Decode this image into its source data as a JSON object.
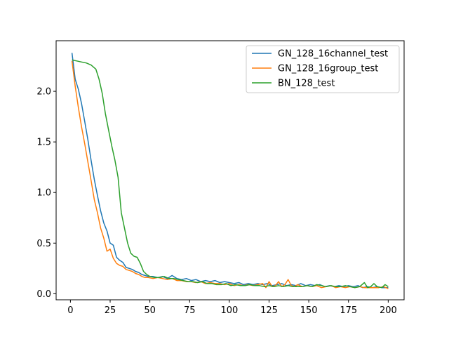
{
  "chart_data": {
    "type": "line",
    "title": "",
    "xlabel": "",
    "ylabel": "",
    "xlim": [
      -9,
      210
    ],
    "ylim": [
      -0.06,
      2.5
    ],
    "x_ticks": [
      0,
      25,
      50,
      75,
      100,
      125,
      150,
      175,
      200
    ],
    "y_ticks": [
      0.0,
      0.5,
      1.0,
      1.5,
      2.0
    ],
    "y_tick_labels": [
      "0.0",
      "0.5",
      "1.0",
      "1.5",
      "2.0"
    ],
    "grid": false,
    "legend_position": "top-right",
    "series": [
      {
        "name": "GN_128_16channel_test",
        "color": "#1f77b4",
        "points": [
          [
            1,
            2.38
          ],
          [
            3,
            2.12
          ],
          [
            5,
            2.02
          ],
          [
            7,
            1.88
          ],
          [
            9,
            1.7
          ],
          [
            11,
            1.52
          ],
          [
            13,
            1.32
          ],
          [
            15,
            1.13
          ],
          [
            17,
            0.97
          ],
          [
            19,
            0.82
          ],
          [
            21,
            0.7
          ],
          [
            23,
            0.62
          ],
          [
            25,
            0.5
          ],
          [
            27,
            0.48
          ],
          [
            29,
            0.36
          ],
          [
            31,
            0.33
          ],
          [
            33,
            0.31
          ],
          [
            35,
            0.26
          ],
          [
            37,
            0.25
          ],
          [
            39,
            0.24
          ],
          [
            41,
            0.22
          ],
          [
            43,
            0.21
          ],
          [
            45,
            0.19
          ],
          [
            47,
            0.18
          ],
          [
            49,
            0.17
          ],
          [
            52,
            0.17
          ],
          [
            55,
            0.16
          ],
          [
            58,
            0.17
          ],
          [
            61,
            0.15
          ],
          [
            64,
            0.18
          ],
          [
            67,
            0.15
          ],
          [
            70,
            0.14
          ],
          [
            73,
            0.15
          ],
          [
            76,
            0.13
          ],
          [
            79,
            0.14
          ],
          [
            82,
            0.12
          ],
          [
            85,
            0.13
          ],
          [
            88,
            0.12
          ],
          [
            91,
            0.13
          ],
          [
            94,
            0.11
          ],
          [
            97,
            0.12
          ],
          [
            100,
            0.11
          ],
          [
            103,
            0.1
          ],
          [
            106,
            0.11
          ],
          [
            109,
            0.09
          ],
          [
            112,
            0.1
          ],
          [
            115,
            0.09
          ],
          [
            118,
            0.1
          ],
          [
            121,
            0.09
          ],
          [
            124,
            0.1
          ],
          [
            127,
            0.08
          ],
          [
            130,
            0.09
          ],
          [
            133,
            0.1
          ],
          [
            136,
            0.08
          ],
          [
            139,
            0.09
          ],
          [
            142,
            0.08
          ],
          [
            145,
            0.1
          ],
          [
            148,
            0.08
          ],
          [
            151,
            0.09
          ],
          [
            154,
            0.08
          ],
          [
            157,
            0.09
          ],
          [
            160,
            0.07
          ],
          [
            163,
            0.08
          ],
          [
            166,
            0.07
          ],
          [
            169,
            0.08
          ],
          [
            172,
            0.07
          ],
          [
            175,
            0.08
          ],
          [
            178,
            0.07
          ],
          [
            181,
            0.08
          ],
          [
            184,
            0.06
          ],
          [
            187,
            0.07
          ],
          [
            190,
            0.06
          ],
          [
            193,
            0.07
          ],
          [
            196,
            0.06
          ],
          [
            200,
            0.06
          ]
        ]
      },
      {
        "name": "GN_128_16group_test",
        "color": "#ff7f0e",
        "points": [
          [
            1,
            2.3
          ],
          [
            3,
            2.05
          ],
          [
            5,
            1.84
          ],
          [
            7,
            1.65
          ],
          [
            9,
            1.48
          ],
          [
            11,
            1.3
          ],
          [
            13,
            1.12
          ],
          [
            15,
            0.93
          ],
          [
            17,
            0.8
          ],
          [
            19,
            0.65
          ],
          [
            21,
            0.55
          ],
          [
            23,
            0.42
          ],
          [
            25,
            0.44
          ],
          [
            27,
            0.35
          ],
          [
            29,
            0.3
          ],
          [
            31,
            0.28
          ],
          [
            33,
            0.27
          ],
          [
            35,
            0.24
          ],
          [
            37,
            0.23
          ],
          [
            39,
            0.22
          ],
          [
            41,
            0.2
          ],
          [
            43,
            0.19
          ],
          [
            45,
            0.17
          ],
          [
            47,
            0.16
          ],
          [
            49,
            0.16
          ],
          [
            52,
            0.15
          ],
          [
            55,
            0.16
          ],
          [
            58,
            0.15
          ],
          [
            61,
            0.14
          ],
          [
            64,
            0.15
          ],
          [
            67,
            0.13
          ],
          [
            70,
            0.13
          ],
          [
            73,
            0.12
          ],
          [
            76,
            0.12
          ],
          [
            79,
            0.11
          ],
          [
            82,
            0.12
          ],
          [
            85,
            0.1
          ],
          [
            88,
            0.11
          ],
          [
            91,
            0.1
          ],
          [
            94,
            0.1
          ],
          [
            97,
            0.09
          ],
          [
            100,
            0.1
          ],
          [
            103,
            0.08
          ],
          [
            106,
            0.09
          ],
          [
            109,
            0.08
          ],
          [
            112,
            0.09
          ],
          [
            115,
            0.08
          ],
          [
            118,
            0.09
          ],
          [
            121,
            0.1
          ],
          [
            123,
            0.06
          ],
          [
            125,
            0.12
          ],
          [
            127,
            0.07
          ],
          [
            129,
            0.08
          ],
          [
            131,
            0.12
          ],
          [
            133,
            0.07
          ],
          [
            135,
            0.09
          ],
          [
            137,
            0.14
          ],
          [
            139,
            0.08
          ],
          [
            141,
            0.07
          ],
          [
            143,
            0.09
          ],
          [
            146,
            0.07
          ],
          [
            149,
            0.08
          ],
          [
            152,
            0.07
          ],
          [
            155,
            0.08
          ],
          [
            158,
            0.06
          ],
          [
            161,
            0.07
          ],
          [
            164,
            0.08
          ],
          [
            167,
            0.06
          ],
          [
            170,
            0.07
          ],
          [
            173,
            0.06
          ],
          [
            176,
            0.07
          ],
          [
            179,
            0.06
          ],
          [
            182,
            0.07
          ],
          [
            185,
            0.06
          ],
          [
            188,
            0.06
          ],
          [
            191,
            0.06
          ],
          [
            194,
            0.06
          ],
          [
            197,
            0.07
          ],
          [
            200,
            0.05
          ]
        ]
      },
      {
        "name": "BN_128_test",
        "color": "#2ca02c",
        "points": [
          [
            1,
            2.31
          ],
          [
            4,
            2.3
          ],
          [
            7,
            2.29
          ],
          [
            10,
            2.28
          ],
          [
            13,
            2.26
          ],
          [
            16,
            2.22
          ],
          [
            18,
            2.12
          ],
          [
            20,
            1.98
          ],
          [
            22,
            1.78
          ],
          [
            24,
            1.62
          ],
          [
            26,
            1.46
          ],
          [
            28,
            1.32
          ],
          [
            30,
            1.15
          ],
          [
            32,
            0.8
          ],
          [
            34,
            0.65
          ],
          [
            36,
            0.5
          ],
          [
            38,
            0.4
          ],
          [
            40,
            0.37
          ],
          [
            42,
            0.36
          ],
          [
            44,
            0.3
          ],
          [
            46,
            0.22
          ],
          [
            48,
            0.19
          ],
          [
            50,
            0.17
          ],
          [
            53,
            0.16
          ],
          [
            56,
            0.16
          ],
          [
            59,
            0.17
          ],
          [
            62,
            0.15
          ],
          [
            65,
            0.15
          ],
          [
            68,
            0.14
          ],
          [
            71,
            0.13
          ],
          [
            74,
            0.12
          ],
          [
            77,
            0.12
          ],
          [
            80,
            0.11
          ],
          [
            83,
            0.12
          ],
          [
            86,
            0.1
          ],
          [
            89,
            0.1
          ],
          [
            92,
            0.09
          ],
          [
            95,
            0.09
          ],
          [
            98,
            0.1
          ],
          [
            101,
            0.08
          ],
          [
            104,
            0.09
          ],
          [
            107,
            0.08
          ],
          [
            110,
            0.08
          ],
          [
            113,
            0.09
          ],
          [
            116,
            0.08
          ],
          [
            119,
            0.08
          ],
          [
            122,
            0.07
          ],
          [
            125,
            0.08
          ],
          [
            128,
            0.07
          ],
          [
            131,
            0.08
          ],
          [
            134,
            0.07
          ],
          [
            137,
            0.08
          ],
          [
            140,
            0.07
          ],
          [
            143,
            0.07
          ],
          [
            146,
            0.07
          ],
          [
            149,
            0.08
          ],
          [
            152,
            0.07
          ],
          [
            155,
            0.09
          ],
          [
            158,
            0.08
          ],
          [
            161,
            0.07
          ],
          [
            164,
            0.08
          ],
          [
            167,
            0.07
          ],
          [
            170,
            0.07
          ],
          [
            173,
            0.08
          ],
          [
            176,
            0.07
          ],
          [
            179,
            0.06
          ],
          [
            182,
            0.07
          ],
          [
            185,
            0.11
          ],
          [
            187,
            0.06
          ],
          [
            189,
            0.07
          ],
          [
            191,
            0.1
          ],
          [
            193,
            0.07
          ],
          [
            196,
            0.06
          ],
          [
            198,
            0.09
          ],
          [
            200,
            0.07
          ]
        ]
      }
    ]
  }
}
